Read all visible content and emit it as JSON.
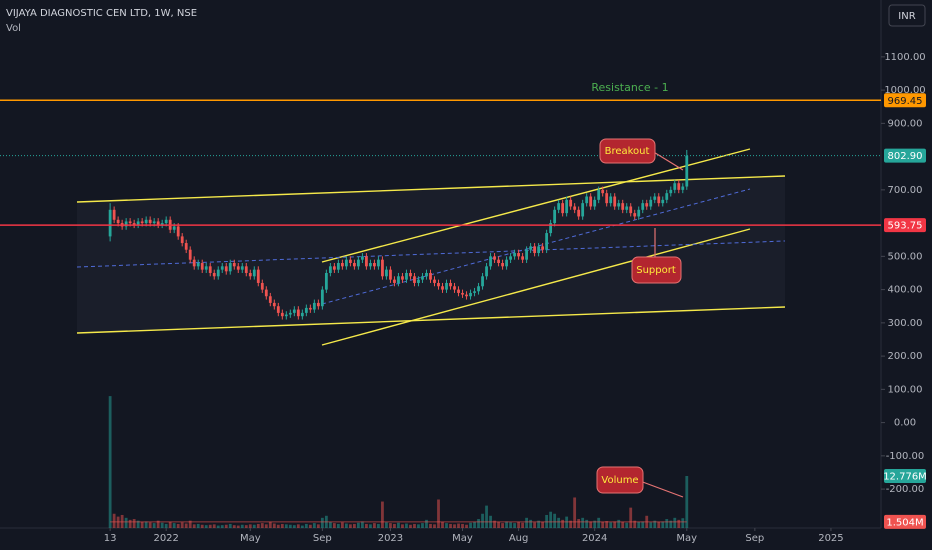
{
  "chart_data": {
    "type": "candlestick",
    "title": "VIJAYA DIAGNOSTIC CEN LTD, 1W, NSE",
    "subtitle": "Vol",
    "currency": "INR",
    "colors": {
      "up": "#26a69a",
      "down": "#ef5350"
    },
    "xlim": [
      -27.5,
      192.5
    ],
    "xticks": [
      {
        "value": 0,
        "label": "13"
      },
      {
        "value": 14,
        "label": "2022"
      },
      {
        "value": 35,
        "label": "May"
      },
      {
        "value": 53,
        "label": "Sep"
      },
      {
        "value": 70,
        "label": "2023"
      },
      {
        "value": 88,
        "label": "May"
      },
      {
        "value": 102,
        "label": "Aug"
      },
      {
        "value": 121,
        "label": "2024"
      },
      {
        "value": 144,
        "label": "May"
      },
      {
        "value": 161,
        "label": "Sep"
      },
      {
        "value": 180,
        "label": "2025"
      }
    ],
    "ylim": [
      -317,
      1271
    ],
    "yticks": [
      {
        "value": 1100,
        "label": "1100.00"
      },
      {
        "value": 1000,
        "label": "1000.00"
      },
      {
        "value": 900,
        "label": "900.00"
      },
      {
        "value": 700,
        "label": "700.00"
      },
      {
        "value": 500,
        "label": "500.00"
      },
      {
        "value": 400,
        "label": "400.00"
      },
      {
        "value": 300,
        "label": "300.00"
      },
      {
        "value": 200,
        "label": "200.00"
      },
      {
        "value": 100,
        "label": "100.00"
      },
      {
        "value": 0,
        "label": "0.00"
      },
      {
        "value": -100,
        "label": "-100.00"
      },
      {
        "value": -200,
        "label": "-200.00"
      }
    ],
    "y2lim": [
      0,
      129.7
    ],
    "open": [
      560,
      640,
      610,
      600,
      590,
      605,
      600,
      595,
      605,
      600,
      610,
      600,
      605,
      595,
      600,
      610,
      580,
      590,
      560,
      540,
      520,
      490,
      470,
      480,
      460,
      470,
      450,
      440,
      460,
      470,
      455,
      480,
      470,
      460,
      470,
      450,
      440,
      460,
      420,
      400,
      380,
      360,
      350,
      330,
      320,
      325,
      330,
      340,
      320,
      330,
      345,
      340,
      360,
      350,
      400,
      450,
      470,
      460,
      480,
      470,
      490,
      480,
      470,
      490,
      500,
      470,
      480,
      470,
      490,
      440,
      460,
      430,
      420,
      440,
      430,
      450,
      440,
      420,
      430,
      440,
      450,
      430,
      420,
      410,
      400,
      420,
      410,
      400,
      390,
      385,
      380,
      390,
      395,
      410,
      440,
      470,
      500,
      490,
      480,
      470,
      490,
      500,
      510,
      500,
      490,
      520,
      530,
      510,
      530,
      520,
      570,
      600,
      640,
      660,
      630,
      670,
      650,
      640,
      620,
      660,
      680,
      650,
      670,
      700,
      690,
      660,
      680,
      650,
      660,
      640,
      650,
      630,
      620,
      640,
      660,
      650,
      670,
      680,
      660,
      670,
      690,
      700,
      720,
      700,
      710
    ],
    "high": [
      660,
      650,
      620,
      610,
      615,
      615,
      610,
      615,
      615,
      620,
      620,
      615,
      615,
      610,
      620,
      620,
      600,
      600,
      570,
      550,
      530,
      500,
      490,
      490,
      480,
      480,
      460,
      470,
      480,
      480,
      490,
      490,
      480,
      480,
      480,
      460,
      470,
      470,
      430,
      410,
      390,
      370,
      360,
      340,
      335,
      340,
      350,
      350,
      340,
      355,
      355,
      370,
      370,
      410,
      460,
      480,
      480,
      490,
      490,
      500,
      500,
      490,
      500,
      510,
      510,
      490,
      490,
      500,
      500,
      470,
      470,
      440,
      450,
      450,
      460,
      460,
      450,
      440,
      450,
      460,
      460,
      440,
      430,
      420,
      430,
      430,
      420,
      410,
      400,
      395,
      400,
      405,
      420,
      450,
      480,
      510,
      510,
      500,
      490,
      500,
      510,
      520,
      520,
      510,
      530,
      540,
      540,
      540,
      540,
      580,
      610,
      650,
      670,
      670,
      680,
      680,
      660,
      650,
      670,
      690,
      690,
      680,
      710,
      710,
      700,
      690,
      690,
      670,
      670,
      660,
      660,
      640,
      650,
      670,
      670,
      680,
      690,
      690,
      680,
      700,
      710,
      730,
      730,
      720,
      820
    ],
    "low": [
      545,
      600,
      590,
      580,
      580,
      590,
      585,
      585,
      590,
      590,
      590,
      590,
      585,
      585,
      590,
      570,
      570,
      550,
      530,
      510,
      480,
      460,
      460,
      450,
      450,
      440,
      430,
      430,
      450,
      445,
      445,
      460,
      450,
      450,
      440,
      430,
      430,
      410,
      390,
      370,
      350,
      340,
      320,
      310,
      310,
      315,
      320,
      310,
      310,
      320,
      330,
      330,
      340,
      340,
      390,
      440,
      450,
      450,
      460,
      460,
      470,
      460,
      460,
      480,
      460,
      460,
      460,
      460,
      430,
      430,
      420,
      410,
      410,
      420,
      420,
      430,
      410,
      410,
      420,
      430,
      420,
      410,
      400,
      390,
      390,
      400,
      390,
      380,
      375,
      370,
      370,
      380,
      385,
      400,
      430,
      460,
      480,
      470,
      460,
      460,
      480,
      490,
      490,
      480,
      480,
      510,
      500,
      500,
      510,
      510,
      560,
      590,
      630,
      620,
      620,
      640,
      630,
      610,
      610,
      650,
      640,
      640,
      660,
      680,
      650,
      650,
      640,
      640,
      630,
      630,
      620,
      610,
      610,
      630,
      640,
      640,
      660,
      650,
      650,
      660,
      680,
      690,
      690,
      690,
      700
    ],
    "close": [
      640,
      610,
      600,
      590,
      605,
      600,
      595,
      605,
      600,
      610,
      600,
      605,
      595,
      600,
      610,
      580,
      590,
      560,
      540,
      520,
      490,
      470,
      480,
      460,
      470,
      450,
      440,
      460,
      470,
      455,
      480,
      470,
      460,
      470,
      450,
      440,
      460,
      420,
      400,
      380,
      360,
      350,
      330,
      320,
      325,
      330,
      340,
      320,
      330,
      345,
      340,
      360,
      350,
      400,
      450,
      470,
      460,
      480,
      470,
      490,
      480,
      470,
      490,
      500,
      470,
      480,
      470,
      490,
      440,
      460,
      430,
      420,
      440,
      430,
      450,
      440,
      420,
      430,
      440,
      450,
      430,
      420,
      410,
      400,
      420,
      410,
      400,
      390,
      385,
      380,
      390,
      395,
      410,
      440,
      470,
      500,
      490,
      480,
      470,
      490,
      500,
      510,
      500,
      490,
      520,
      530,
      510,
      530,
      520,
      570,
      600,
      640,
      660,
      630,
      670,
      650,
      640,
      620,
      660,
      680,
      650,
      670,
      700,
      690,
      660,
      680,
      650,
      660,
      640,
      650,
      630,
      620,
      640,
      660,
      650,
      670,
      680,
      660,
      670,
      690,
      700,
      720,
      700,
      710,
      802.9
    ],
    "volume": [
      32.4,
      3.5,
      2.8,
      3.2,
      2.5,
      2.0,
      2.2,
      1.8,
      1.5,
      1.6,
      1.4,
      1.2,
      1.8,
      1.3,
      1.0,
      1.5,
      1.2,
      1.0,
      1.4,
      1.1,
      1.8,
      0.9,
      1.0,
      0.8,
      0.7,
      0.8,
      0.9,
      0.6,
      0.7,
      0.8,
      1.0,
      0.7,
      0.6,
      0.8,
      0.7,
      0.9,
      0.8,
      1.0,
      1.2,
      0.9,
      1.5,
      1.1,
      0.8,
      1.0,
      0.9,
      0.8,
      0.7,
      0.9,
      0.6,
      1.0,
      0.8,
      1.2,
      0.9,
      2.5,
      3.0,
      1.5,
      1.2,
      1.0,
      1.4,
      1.1,
      0.9,
      1.0,
      1.3,
      1.6,
      1.0,
      0.9,
      1.2,
      1.0,
      6.5,
      1.4,
      1.2,
      1.0,
      1.3,
      0.9,
      1.1,
      0.8,
      1.0,
      0.9,
      1.2,
      2.0,
      1.0,
      0.9,
      7.0,
      1.5,
      1.2,
      1.0,
      0.9,
      1.1,
      1.0,
      0.8,
      1.3,
      1.5,
      2.2,
      3.5,
      5.5,
      3.0,
      1.8,
      1.5,
      1.2,
      1.6,
      1.4,
      1.2,
      1.5,
      1.3,
      2.5,
      2.0,
      1.4,
      1.8,
      1.5,
      3.2,
      4.0,
      3.5,
      2.5,
      2.0,
      2.8,
      1.8,
      7.5,
      2.2,
      2.5,
      2.0,
      1.6,
      1.8,
      2.5,
      1.5,
      1.7,
      1.4,
      1.6,
      2.0,
      1.5,
      1.3,
      5.0,
      1.8,
      1.5,
      1.6,
      3.0,
      1.4,
      1.8,
      1.5,
      1.6,
      2.2,
      1.8,
      2.5,
      2.0,
      2.4,
      12.776
    ],
    "volume_last_label": "12.776M",
    "volume_ma": {
      "value": 1.504,
      "label": "1.504M"
    },
    "last_price": {
      "value": 802.9,
      "label": "802.90"
    },
    "levels": [
      {
        "value": 969.45,
        "color": "#ff9800"
      },
      {
        "value": 593.75,
        "color": "#f23645"
      }
    ],
    "annotations": [
      "Resistance - 1",
      "Breakout",
      "Support",
      "Volume"
    ]
  }
}
